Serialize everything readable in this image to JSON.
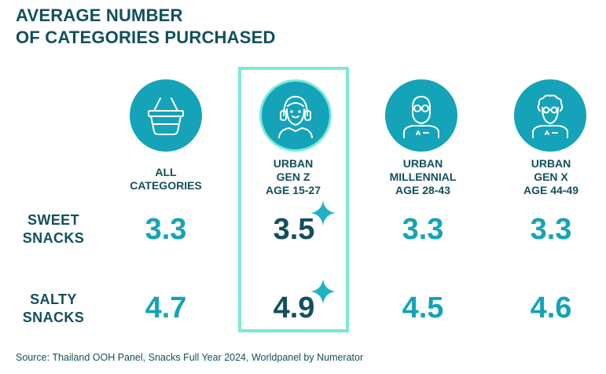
{
  "title": {
    "line1": "AVERAGE NUMBER",
    "line2": "OF CATEGORIES PURCHASED"
  },
  "columns": [
    {
      "lines": [
        "ALL",
        "CATEGORIES"
      ],
      "icon": "basket-icon"
    },
    {
      "lines": [
        "URBAN",
        "GEN Z",
        "AGE 15-27"
      ],
      "icon": "headphones-person-icon"
    },
    {
      "lines": [
        "URBAN",
        "MILLENNIAL",
        "AGE 28-43"
      ],
      "icon": "glasses-person-icon"
    },
    {
      "lines": [
        "URBAN",
        "GEN X",
        "AGE 44-49"
      ],
      "icon": "curly-hair-person-icon"
    }
  ],
  "rows": [
    {
      "lines": [
        "SWEET",
        "SNACKS"
      ]
    },
    {
      "lines": [
        "SALTY",
        "SNACKS"
      ]
    }
  ],
  "chart_data": {
    "type": "table",
    "columns": [
      "ALL CATEGORIES",
      "URBAN GEN Z AGE 15-27",
      "URBAN MILLENNIAL AGE 28-43",
      "URBAN GEN X AGE 44-49"
    ],
    "rows": [
      "SWEET SNACKS",
      "SALTY SNACKS"
    ],
    "values": [
      [
        "3.3",
        "3.5",
        "3.3",
        "3.3"
      ],
      [
        "4.7",
        "4.9",
        "4.5",
        "4.6"
      ]
    ],
    "highlighted_column": 1
  },
  "colors": {
    "teal": "#14a3b8",
    "dark": "#134f5c",
    "highlight": "#7de8d8",
    "sparkle": "#1fb2c4"
  },
  "source": "Source: Thailand OOH Panel, Snacks Full Year 2024, Worldpanel by Numerator"
}
